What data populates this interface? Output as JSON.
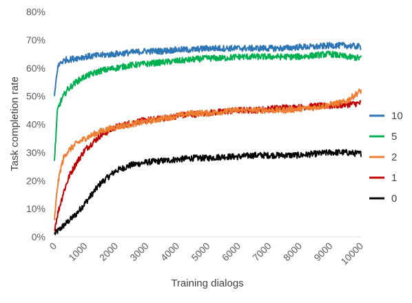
{
  "chart_data": {
    "type": "line",
    "xlabel": "Training dialogs",
    "ylabel": "Task completion rate",
    "xlim": [
      0,
      10000
    ],
    "ylim": [
      0,
      80
    ],
    "x_ticks": [
      "0",
      "1000",
      "2000",
      "3000",
      "4000",
      "5000",
      "6000",
      "7000",
      "8000",
      "9000",
      "10000"
    ],
    "y_ticks": [
      "0%",
      "10%",
      "20%",
      "30%",
      "40%",
      "50%",
      "60%",
      "70%",
      "80%"
    ],
    "grid": false,
    "legend_position": "right",
    "x": [
      0,
      100,
      200,
      300,
      400,
      500,
      700,
      1000,
      1500,
      2000,
      2500,
      3000,
      3500,
      4000,
      4500,
      5000,
      5500,
      6000,
      6500,
      7000,
      7500,
      8000,
      8500,
      9000,
      9500,
      10000
    ],
    "series": [
      {
        "name": "10",
        "color": "#2e75b6",
        "values": [
          50,
          60,
          62,
          62.5,
          63,
          63,
          63.5,
          64,
          64.5,
          65,
          65.5,
          66,
          66,
          66.5,
          66.5,
          67,
          67,
          67,
          67,
          67,
          67,
          67.5,
          67.5,
          68,
          68,
          67.5
        ]
      },
      {
        "name": "5",
        "color": "#00b050",
        "values": [
          27,
          45,
          48,
          50,
          52,
          53,
          55,
          57,
          59,
          60,
          61,
          61.5,
          62,
          62.5,
          63,
          63.5,
          63.5,
          64,
          64,
          64,
          64,
          64,
          64.5,
          65,
          64,
          63.5
        ]
      },
      {
        "name": "2",
        "color": "#ed7d31",
        "values": [
          6,
          18,
          24,
          28,
          30,
          31,
          33,
          35,
          37.5,
          39,
          40,
          41,
          42,
          43,
          44,
          44,
          44.5,
          45,
          45,
          45,
          45,
          45.5,
          46,
          47,
          48,
          52
        ]
      },
      {
        "name": "1",
        "color": "#c00000",
        "values": [
          2.5,
          8,
          12,
          16,
          19,
          22,
          26,
          31,
          36,
          39,
          40.5,
          41.5,
          42,
          43,
          43.5,
          44,
          44.5,
          45,
          45,
          45.5,
          46,
          46,
          46.5,
          46.5,
          47,
          47.5
        ]
      },
      {
        "name": "0",
        "color": "#000000",
        "values": [
          1,
          2,
          3,
          4,
          5,
          6,
          8,
          12,
          19,
          23.5,
          25.5,
          26.5,
          27,
          27.5,
          28,
          28,
          28.5,
          28.5,
          29,
          29,
          29,
          29,
          29.5,
          30,
          30,
          29.5
        ]
      }
    ]
  }
}
